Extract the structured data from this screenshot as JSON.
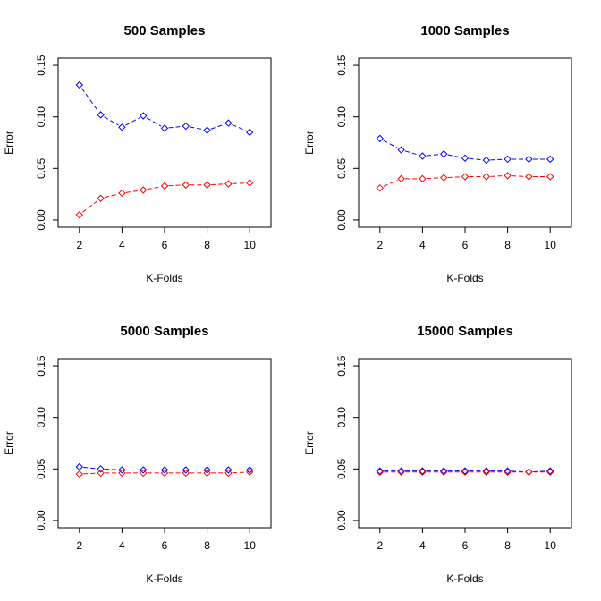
{
  "chart_data": [
    {
      "type": "line",
      "title": "500 Samples",
      "xlabel": "K-Folds",
      "ylabel": "Error",
      "x": [
        2,
        3,
        4,
        5,
        6,
        7,
        8,
        9,
        10
      ],
      "xticks": [
        "2",
        "4",
        "6",
        "8",
        "10"
      ],
      "yticks": [
        "0.00",
        "0.05",
        "0.10",
        "0.15"
      ],
      "xlim": [
        1,
        11
      ],
      "ylim": [
        -0.007,
        0.157
      ],
      "grid": false,
      "series": [
        {
          "color": "#0000ff",
          "values": [
            0.131,
            0.102,
            0.09,
            0.101,
            0.089,
            0.091,
            0.087,
            0.094,
            0.085
          ]
        },
        {
          "color": "#ff0000",
          "values": [
            0.005,
            0.021,
            0.026,
            0.029,
            0.033,
            0.034,
            0.034,
            0.035,
            0.036
          ]
        }
      ]
    },
    {
      "type": "line",
      "title": "1000 Samples",
      "xlabel": "K-Folds",
      "ylabel": "Error",
      "x": [
        2,
        3,
        4,
        5,
        6,
        7,
        8,
        9,
        10
      ],
      "xticks": [
        "2",
        "4",
        "6",
        "8",
        "10"
      ],
      "yticks": [
        "0.00",
        "0.05",
        "0.10",
        "0.15"
      ],
      "xlim": [
        1,
        11
      ],
      "ylim": [
        -0.007,
        0.157
      ],
      "grid": false,
      "series": [
        {
          "color": "#0000ff",
          "values": [
            0.079,
            0.068,
            0.062,
            0.064,
            0.06,
            0.058,
            0.059,
            0.059,
            0.059
          ]
        },
        {
          "color": "#ff0000",
          "values": [
            0.031,
            0.04,
            0.04,
            0.041,
            0.042,
            0.042,
            0.043,
            0.042,
            0.042
          ]
        }
      ]
    },
    {
      "type": "line",
      "title": "5000 Samples",
      "xlabel": "K-Folds",
      "ylabel": "Error",
      "x": [
        2,
        3,
        4,
        5,
        6,
        7,
        8,
        9,
        10
      ],
      "xticks": [
        "2",
        "4",
        "6",
        "8",
        "10"
      ],
      "yticks": [
        "0.00",
        "0.05",
        "0.10",
        "0.15"
      ],
      "xlim": [
        1,
        11
      ],
      "ylim": [
        -0.007,
        0.157
      ],
      "grid": false,
      "series": [
        {
          "color": "#0000ff",
          "values": [
            0.052,
            0.05,
            0.049,
            0.049,
            0.049,
            0.049,
            0.049,
            0.049,
            0.049
          ]
        },
        {
          "color": "#ff0000",
          "values": [
            0.045,
            0.046,
            0.046,
            0.046,
            0.046,
            0.046,
            0.046,
            0.046,
            0.047
          ]
        }
      ]
    },
    {
      "type": "line",
      "title": "15000 Samples",
      "xlabel": "K-Folds",
      "ylabel": "Error",
      "x": [
        2,
        3,
        4,
        5,
        6,
        7,
        8,
        9,
        10
      ],
      "xticks": [
        "2",
        "4",
        "6",
        "8",
        "10"
      ],
      "yticks": [
        "0.00",
        "0.05",
        "0.10",
        "0.15"
      ],
      "xlim": [
        1,
        11
      ],
      "ylim": [
        -0.007,
        0.157
      ],
      "grid": false,
      "series": [
        {
          "color": "#0000ff",
          "values": [
            0.048,
            0.048,
            0.048,
            0.048,
            0.048,
            0.048,
            0.048,
            0.047,
            0.048
          ]
        },
        {
          "color": "#ff0000",
          "values": [
            0.047,
            0.047,
            0.047,
            0.047,
            0.047,
            0.047,
            0.047,
            0.047,
            0.047
          ]
        }
      ]
    }
  ]
}
